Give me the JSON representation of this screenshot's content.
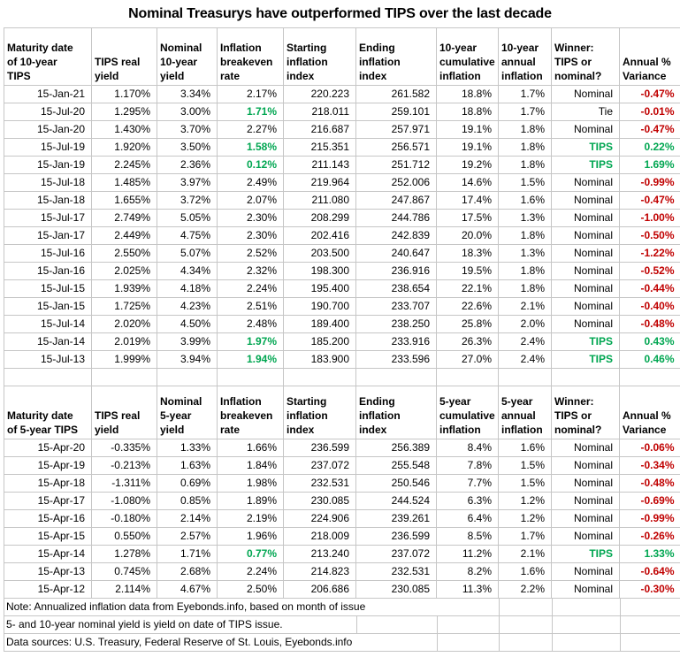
{
  "title": "Nominal Treasurys have outperformed TIPS over the last decade",
  "colors": {
    "green": "#00A651",
    "red": "#C00000",
    "gridline": "#C6C6C6",
    "text": "#000000",
    "background": "#FFFFFF"
  },
  "chart_data": [
    {
      "type": "table",
      "name": "10-year TIPS vs nominal",
      "columns": [
        "Maturity date\nof 10-year\nTIPS",
        "TIPS real\nyield",
        "Nominal\n10-year\nyield",
        "Inflation\nbreakeven\nrate",
        "Starting\ninflation\nindex",
        "Ending\ninflation\nindex",
        "10-year\ncumulative\ninflation",
        "10-year\nannual\ninflation",
        "Winner:\nTIPS or\nnominal?",
        "Annual %\nVariance"
      ],
      "rows": [
        {
          "cells": [
            "15-Jan-21",
            "1.170%",
            "3.34%",
            "2.17%",
            "220.223",
            "261.582",
            "18.8%",
            "1.7%",
            "Nominal",
            "-0.47%"
          ],
          "breakeven_green": false
        },
        {
          "cells": [
            "15-Jul-20",
            "1.295%",
            "3.00%",
            "1.71%",
            "218.011",
            "259.101",
            "18.8%",
            "1.7%",
            "Tie",
            "-0.01%"
          ],
          "breakeven_green": true
        },
        {
          "cells": [
            "15-Jan-20",
            "1.430%",
            "3.70%",
            "2.27%",
            "216.687",
            "257.971",
            "19.1%",
            "1.8%",
            "Nominal",
            "-0.47%"
          ],
          "breakeven_green": false
        },
        {
          "cells": [
            "15-Jul-19",
            "1.920%",
            "3.50%",
            "1.58%",
            "215.351",
            "256.571",
            "19.1%",
            "1.8%",
            "TIPS",
            "0.22%"
          ],
          "breakeven_green": true
        },
        {
          "cells": [
            "15-Jan-19",
            "2.245%",
            "2.36%",
            "0.12%",
            "211.143",
            "251.712",
            "19.2%",
            "1.8%",
            "TIPS",
            "1.69%"
          ],
          "breakeven_green": true
        },
        {
          "cells": [
            "15-Jul-18",
            "1.485%",
            "3.97%",
            "2.49%",
            "219.964",
            "252.006",
            "14.6%",
            "1.5%",
            "Nominal",
            "-0.99%"
          ],
          "breakeven_green": false
        },
        {
          "cells": [
            "15-Jan-18",
            "1.655%",
            "3.72%",
            "2.07%",
            "211.080",
            "247.867",
            "17.4%",
            "1.6%",
            "Nominal",
            "-0.47%"
          ],
          "breakeven_green": false
        },
        {
          "cells": [
            "15-Jul-17",
            "2.749%",
            "5.05%",
            "2.30%",
            "208.299",
            "244.786",
            "17.5%",
            "1.3%",
            "Nominal",
            "-1.00%"
          ],
          "breakeven_green": false
        },
        {
          "cells": [
            "15-Jan-17",
            "2.449%",
            "4.75%",
            "2.30%",
            "202.416",
            "242.839",
            "20.0%",
            "1.8%",
            "Nominal",
            "-0.50%"
          ],
          "breakeven_green": false
        },
        {
          "cells": [
            "15-Jul-16",
            "2.550%",
            "5.07%",
            "2.52%",
            "203.500",
            "240.647",
            "18.3%",
            "1.3%",
            "Nominal",
            "-1.22%"
          ],
          "breakeven_green": false
        },
        {
          "cells": [
            "15-Jan-16",
            "2.025%",
            "4.34%",
            "2.32%",
            "198.300",
            "236.916",
            "19.5%",
            "1.8%",
            "Nominal",
            "-0.52%"
          ],
          "breakeven_green": false
        },
        {
          "cells": [
            "15-Jul-15",
            "1.939%",
            "4.18%",
            "2.24%",
            "195.400",
            "238.654",
            "22.1%",
            "1.8%",
            "Nominal",
            "-0.44%"
          ],
          "breakeven_green": false
        },
        {
          "cells": [
            "15-Jan-15",
            "1.725%",
            "4.23%",
            "2.51%",
            "190.700",
            "233.707",
            "22.6%",
            "2.1%",
            "Nominal",
            "-0.40%"
          ],
          "breakeven_green": false
        },
        {
          "cells": [
            "15-Jul-14",
            "2.020%",
            "4.50%",
            "2.48%",
            "189.400",
            "238.250",
            "25.8%",
            "2.0%",
            "Nominal",
            "-0.48%"
          ],
          "breakeven_green": false
        },
        {
          "cells": [
            "15-Jan-14",
            "2.019%",
            "3.99%",
            "1.97%",
            "185.200",
            "233.916",
            "26.3%",
            "2.4%",
            "TIPS",
            "0.43%"
          ],
          "breakeven_green": true
        },
        {
          "cells": [
            "15-Jul-13",
            "1.999%",
            "3.94%",
            "1.94%",
            "183.900",
            "233.596",
            "27.0%",
            "2.4%",
            "TIPS",
            "0.46%"
          ],
          "breakeven_green": true
        }
      ]
    },
    {
      "type": "table",
      "name": "5-year TIPS vs nominal",
      "columns": [
        "Maturity date\nof 5-year TIPS",
        "TIPS real\nyield",
        "Nominal\n5-year\nyield",
        "Inflation\nbreakeven\nrate",
        "Starting\ninflation\nindex",
        "Ending\ninflation\nindex",
        "5-year\ncumulative\ninflation",
        "5-year\nannual\ninflation",
        "Winner:\nTIPS or\nnominal?",
        "Annual %\nVariance"
      ],
      "rows": [
        {
          "cells": [
            "15-Apr-20",
            "-0.335%",
            "1.33%",
            "1.66%",
            "236.599",
            "256.389",
            "8.4%",
            "1.6%",
            "Nominal",
            "-0.06%"
          ],
          "breakeven_green": false
        },
        {
          "cells": [
            "15-Apr-19",
            "-0.213%",
            "1.63%",
            "1.84%",
            "237.072",
            "255.548",
            "7.8%",
            "1.5%",
            "Nominal",
            "-0.34%"
          ],
          "breakeven_green": false
        },
        {
          "cells": [
            "15-Apr-18",
            "-1.311%",
            "0.69%",
            "1.98%",
            "232.531",
            "250.546",
            "7.7%",
            "1.5%",
            "Nominal",
            "-0.48%"
          ],
          "breakeven_green": false
        },
        {
          "cells": [
            "15-Apr-17",
            "-1.080%",
            "0.85%",
            "1.89%",
            "230.085",
            "244.524",
            "6.3%",
            "1.2%",
            "Nominal",
            "-0.69%"
          ],
          "breakeven_green": false
        },
        {
          "cells": [
            "15-Apr-16",
            "-0.180%",
            "2.14%",
            "2.19%",
            "224.906",
            "239.261",
            "6.4%",
            "1.2%",
            "Nominal",
            "-0.99%"
          ],
          "breakeven_green": false
        },
        {
          "cells": [
            "15-Apr-15",
            "0.550%",
            "2.57%",
            "1.96%",
            "218.009",
            "236.599",
            "8.5%",
            "1.7%",
            "Nominal",
            "-0.26%"
          ],
          "breakeven_green": false
        },
        {
          "cells": [
            "15-Apr-14",
            "1.278%",
            "1.71%",
            "0.77%",
            "213.240",
            "237.072",
            "11.2%",
            "2.1%",
            "TIPS",
            "1.33%"
          ],
          "breakeven_green": true
        },
        {
          "cells": [
            "15-Apr-13",
            "0.745%",
            "2.68%",
            "2.24%",
            "214.823",
            "232.531",
            "8.2%",
            "1.6%",
            "Nominal",
            "-0.64%"
          ],
          "breakeven_green": false
        },
        {
          "cells": [
            "15-Apr-12",
            "2.114%",
            "4.67%",
            "2.50%",
            "206.686",
            "230.085",
            "11.3%",
            "2.2%",
            "Nominal",
            "-0.30%"
          ],
          "breakeven_green": false
        }
      ]
    }
  ],
  "notes": [
    "Note: Annualized inflation data from Eyebonds.info, based on month of issue",
    "5- and 10-year nominal yield is yield on date of TIPS issue.",
    "Data sources: U.S. Treasury, Federal Reserve of St. Louis, Eyebonds.info"
  ]
}
